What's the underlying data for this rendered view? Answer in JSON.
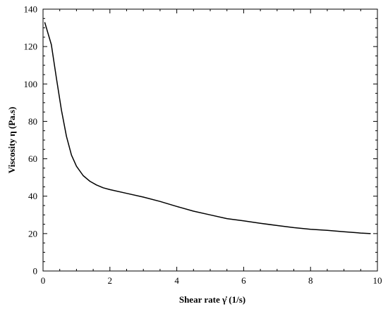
{
  "chart_data": {
    "type": "line",
    "xlabel": "Shear rate γ̇  (1/s)",
    "ylabel": "Viscosity η  (Pa.s)",
    "xlim": [
      0,
      10
    ],
    "ylim": [
      0,
      140
    ],
    "x_ticks": [
      "0",
      "2",
      "4",
      "6",
      "8",
      "10"
    ],
    "y_ticks": [
      "0",
      "20",
      "40",
      "60",
      "80",
      "100",
      "120",
      "140"
    ],
    "grid": false,
    "legend": "none",
    "line_color": "#000000",
    "series": [
      {
        "x": [
          0.05,
          0.25,
          0.4,
          0.55,
          0.7,
          0.85,
          1.0,
          1.2,
          1.4,
          1.6,
          1.8,
          2.0,
          2.5,
          3.0,
          3.5,
          4.0,
          4.5,
          5.0,
          5.5,
          6.0,
          6.5,
          7.0,
          7.5,
          8.0,
          8.5,
          9.0,
          9.5,
          9.8
        ],
        "y": [
          133,
          121,
          103,
          86,
          72,
          62,
          56,
          51,
          48,
          46,
          44.5,
          43.5,
          41.5,
          39.5,
          37.2,
          34.5,
          32,
          30,
          28,
          26.8,
          25.5,
          24.3,
          23.2,
          22.3,
          21.7,
          21,
          20.3,
          20
        ]
      }
    ]
  }
}
